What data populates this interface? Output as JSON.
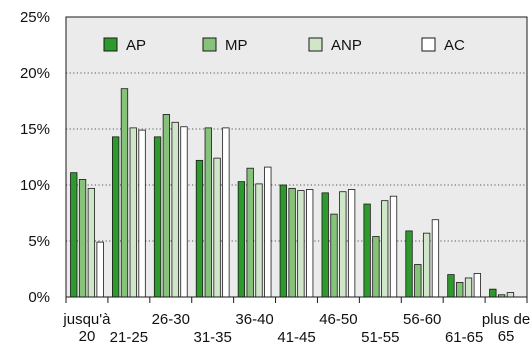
{
  "chart_data": {
    "type": "bar",
    "title": "",
    "xlabel": "",
    "ylabel": "",
    "ylim": [
      0,
      25
    ],
    "yticks": [
      "0%",
      "5%",
      "10%",
      "15%",
      "20%",
      "25%"
    ],
    "grid": true,
    "legend_position": "top",
    "categories": [
      [
        "jusqu'à",
        "20"
      ],
      [
        "21-25"
      ],
      [
        "26-30"
      ],
      [
        "31-35"
      ],
      [
        "36-40"
      ],
      [
        "41-45"
      ],
      [
        "46-50"
      ],
      [
        "51-55"
      ],
      [
        "56-60"
      ],
      [
        "61-65"
      ],
      [
        "plus de",
        "65"
      ]
    ],
    "series": [
      {
        "name": "AP",
        "color": "#2e9a2e",
        "values": [
          11.1,
          14.3,
          14.3,
          12.2,
          10.3,
          10.0,
          9.3,
          8.3,
          5.9,
          2.0,
          0.7
        ]
      },
      {
        "name": "MP",
        "color": "#86c27a",
        "values": [
          10.5,
          18.6,
          16.3,
          15.1,
          11.5,
          9.7,
          7.4,
          5.4,
          2.9,
          1.3,
          0.2
        ]
      },
      {
        "name": "ANP",
        "color": "#cfe7c8",
        "values": [
          9.7,
          15.1,
          15.6,
          12.4,
          10.1,
          9.5,
          9.4,
          8.6,
          5.7,
          1.7,
          0.4
        ]
      },
      {
        "name": "AC",
        "color": "#ffffff",
        "values": [
          4.9,
          14.9,
          15.2,
          15.1,
          11.6,
          9.6,
          9.6,
          9.0,
          6.9,
          2.1,
          0.0
        ]
      }
    ]
  }
}
